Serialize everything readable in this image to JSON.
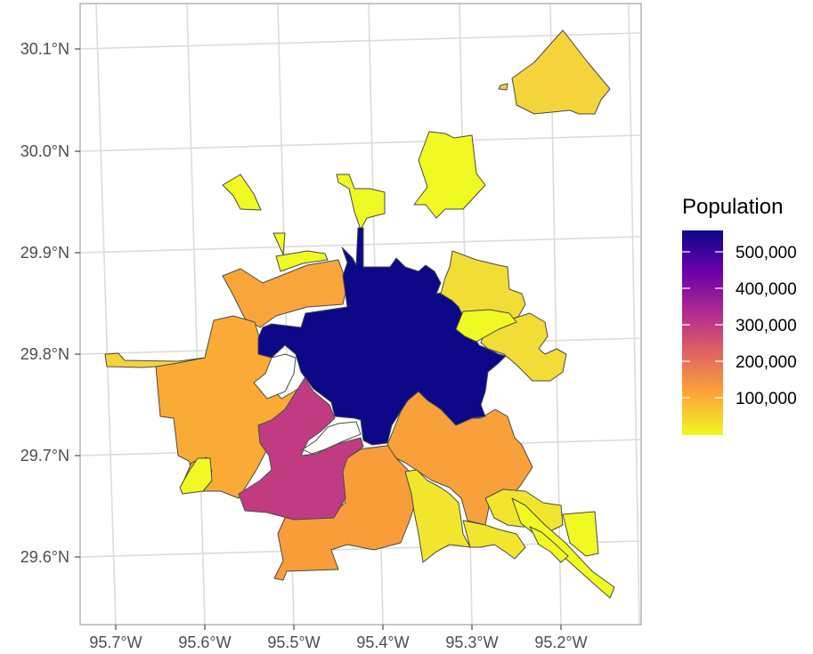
{
  "map": {
    "x_ticks": [
      "95.7°W",
      "95.6°W",
      "95.5°W",
      "95.4°W",
      "95.3°W",
      "95.2°W"
    ],
    "y_ticks": [
      "30.1°N",
      "30.0°N",
      "29.9°N",
      "29.8°N",
      "29.7°N",
      "29.6°N"
    ]
  },
  "legend": {
    "title": "Population",
    "labels": [
      "500,000",
      "400,000",
      "300,000",
      "200,000",
      "100,000"
    ],
    "gradient_colors": [
      "#0d0887",
      "#6a00a8",
      "#b12a90",
      "#e16462",
      "#fca636",
      "#f0f921"
    ]
  },
  "regions": [
    {
      "id": "central",
      "fill": "#0d0887"
    },
    {
      "id": "southwest-magenta",
      "fill": "#c13b82"
    },
    {
      "id": "south-orange",
      "fill": "#f89d3a"
    },
    {
      "id": "southeast-orange",
      "fill": "#f8a13a"
    },
    {
      "id": "west-orange",
      "fill": "#f9ab35"
    },
    {
      "id": "northwest-orange",
      "fill": "#f8a63a"
    },
    {
      "id": "far-west-yellow",
      "fill": "#f4d43a"
    },
    {
      "id": "north-east-yellow",
      "fill": "#f2dc36"
    },
    {
      "id": "northeast-far-yellow",
      "fill": "#f4d43a"
    },
    {
      "id": "north-yellow",
      "fill": "#f0f921"
    },
    {
      "id": "southeast-yellow",
      "fill": "#f2e52d"
    }
  ]
}
